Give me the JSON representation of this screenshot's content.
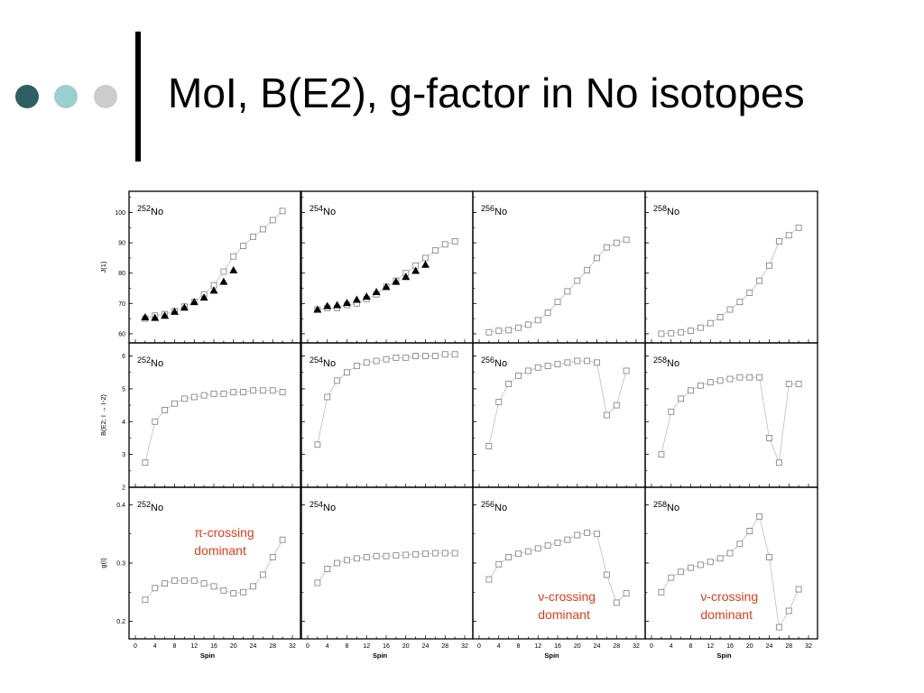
{
  "slide": {
    "title": "MoI, B(E2), g-factor in No isotopes",
    "accent_colors": [
      "#2f5f63",
      "#9ccfd0",
      "#cccccc"
    ]
  },
  "chart_data": {
    "type": "scatter",
    "xlabel": "Spin",
    "x_ticks": [
      0,
      4,
      8,
      12,
      16,
      20,
      24,
      28,
      32
    ],
    "xlim": [
      0,
      32
    ],
    "columns": [
      "252",
      "254",
      "256",
      "258"
    ],
    "nucleus_suffix": "No",
    "rows": [
      {
        "ylabel": "J(1)",
        "ylim": [
          57,
          107
        ],
        "y_ticks": [
          60,
          70,
          80,
          90,
          100
        ],
        "panels": [
          {
            "isotope": "252",
            "calc_x": [
              2,
              4,
              6,
              8,
              10,
              12,
              14,
              16,
              18,
              20,
              22,
              24,
              26,
              28,
              30
            ],
            "calc_y": [
              65,
              66,
              66.5,
              67.5,
              69,
              70.5,
              73,
              76,
              80.5,
              85.5,
              89,
              92,
              94.5,
              97.5,
              100.5
            ],
            "exp_x": [
              2,
              4,
              6,
              8,
              10,
              12,
              14,
              16,
              18,
              20
            ],
            "exp_y": [
              65.5,
              65.3,
              66,
              67.3,
              68.7,
              70.5,
              72,
              74.3,
              77.2,
              81
            ]
          },
          {
            "isotope": "254",
            "calc_x": [
              2,
              4,
              6,
              8,
              10,
              12,
              14,
              16,
              18,
              20,
              22,
              24,
              26,
              28,
              30
            ],
            "calc_y": [
              68,
              68.5,
              68.5,
              69.5,
              70,
              71.5,
              73,
              75.5,
              77.5,
              80,
              82.5,
              85,
              87.5,
              89.5,
              90.5
            ],
            "exp_x": [
              2,
              4,
              6,
              8,
              10,
              12,
              14,
              16,
              18,
              20,
              22,
              24
            ],
            "exp_y": [
              68,
              69.2,
              69.5,
              70.2,
              71.3,
              72.3,
              73.8,
              75.5,
              77.2,
              78.8,
              80.8,
              82.8
            ]
          },
          {
            "isotope": "256",
            "calc_x": [
              2,
              4,
              6,
              8,
              10,
              12,
              14,
              16,
              18,
              20,
              22,
              24,
              26,
              28,
              30
            ],
            "calc_y": [
              60.5,
              61,
              61.2,
              62,
              63,
              64.5,
              67,
              70.5,
              74,
              77.5,
              81,
              85,
              88.5,
              90,
              91
            ],
            "exp_x": [],
            "exp_y": []
          },
          {
            "isotope": "258",
            "calc_x": [
              2,
              4,
              6,
              8,
              10,
              12,
              14,
              16,
              18,
              20,
              22,
              24,
              26,
              28,
              30
            ],
            "calc_y": [
              60,
              60.2,
              60.5,
              61,
              62,
              63.5,
              65.5,
              68,
              70.5,
              73.5,
              77.5,
              82.5,
              90.5,
              92.5,
              95
            ],
            "exp_x": [],
            "exp_y": []
          }
        ]
      },
      {
        "ylabel": "B(E2; I → I-2)",
        "ylim": [
          2,
          6.4
        ],
        "y_ticks": [
          2,
          3,
          4,
          5,
          6
        ],
        "panels": [
          {
            "isotope": "252",
            "calc_x": [
              2,
              4,
              6,
              8,
              10,
              12,
              14,
              16,
              18,
              20,
              22,
              24,
              26,
              28,
              30
            ],
            "calc_y": [
              2.75,
              4.0,
              4.35,
              4.55,
              4.7,
              4.75,
              4.8,
              4.85,
              4.85,
              4.9,
              4.9,
              4.95,
              4.95,
              4.95,
              4.9
            ],
            "exp_x": [],
            "exp_y": []
          },
          {
            "isotope": "254",
            "calc_x": [
              2,
              4,
              6,
              8,
              10,
              12,
              14,
              16,
              18,
              20,
              22,
              24,
              26,
              28,
              30
            ],
            "calc_y": [
              3.3,
              4.75,
              5.25,
              5.5,
              5.7,
              5.8,
              5.85,
              5.9,
              5.95,
              5.95,
              6.0,
              6.0,
              6.0,
              6.05,
              6.05
            ],
            "exp_x": [],
            "exp_y": []
          },
          {
            "isotope": "256",
            "calc_x": [
              2,
              4,
              6,
              8,
              10,
              12,
              14,
              16,
              18,
              20,
              22,
              24,
              26,
              28,
              30
            ],
            "calc_y": [
              3.25,
              4.6,
              5.15,
              5.4,
              5.55,
              5.65,
              5.7,
              5.75,
              5.8,
              5.85,
              5.85,
              5.8,
              4.2,
              4.5,
              5.55
            ],
            "exp_x": [],
            "exp_y": []
          },
          {
            "isotope": "258",
            "calc_x": [
              2,
              4,
              6,
              8,
              10,
              12,
              14,
              16,
              18,
              20,
              22,
              24,
              26,
              28,
              30
            ],
            "calc_y": [
              3.0,
              4.3,
              4.7,
              4.95,
              5.1,
              5.2,
              5.25,
              5.3,
              5.35,
              5.35,
              5.35,
              3.5,
              2.75,
              5.15,
              5.15
            ],
            "exp_x": [],
            "exp_y": []
          }
        ]
      },
      {
        "ylabel": "g(I)",
        "ylim": [
          0.17,
          0.43
        ],
        "y_ticks": [
          0.2,
          0.3,
          0.4
        ],
        "panels": [
          {
            "isotope": "252",
            "calc_x": [
              2,
              4,
              6,
              8,
              10,
              12,
              14,
              16,
              18,
              20,
              22,
              24,
              26,
              28,
              30
            ],
            "calc_y": [
              0.237,
              0.257,
              0.265,
              0.27,
              0.27,
              0.27,
              0.265,
              0.26,
              0.253,
              0.248,
              0.25,
              0.26,
              0.28,
              0.31,
              0.34
            ],
            "exp_x": [],
            "exp_y": []
          },
          {
            "isotope": "254",
            "calc_x": [
              2,
              4,
              6,
              8,
              10,
              12,
              14,
              16,
              18,
              20,
              22,
              24,
              26,
              28,
              30
            ],
            "calc_y": [
              0.266,
              0.29,
              0.3,
              0.305,
              0.308,
              0.31,
              0.312,
              0.312,
              0.313,
              0.314,
              0.315,
              0.316,
              0.317,
              0.317,
              0.317
            ],
            "exp_x": [],
            "exp_y": []
          },
          {
            "isotope": "256",
            "calc_x": [
              2,
              4,
              6,
              8,
              10,
              12,
              14,
              16,
              18,
              20,
              22,
              24,
              26,
              28,
              30
            ],
            "calc_y": [
              0.272,
              0.298,
              0.31,
              0.316,
              0.32,
              0.325,
              0.33,
              0.335,
              0.34,
              0.348,
              0.352,
              0.35,
              0.28,
              0.232,
              0.248
            ],
            "exp_x": [],
            "exp_y": []
          },
          {
            "isotope": "258",
            "calc_x": [
              2,
              4,
              6,
              8,
              10,
              12,
              14,
              16,
              18,
              20,
              22,
              24,
              26,
              28,
              30
            ],
            "calc_y": [
              0.25,
              0.275,
              0.285,
              0.292,
              0.297,
              0.302,
              0.308,
              0.317,
              0.333,
              0.355,
              0.38,
              0.31,
              0.19,
              0.218,
              0.255
            ],
            "exp_x": [],
            "exp_y": []
          }
        ]
      }
    ],
    "annotations": [
      {
        "row": 2,
        "col": 0,
        "text_lines": [
          "π-crossing",
          "dominant"
        ],
        "at": [
          12,
          0.345
        ],
        "color": "#d9401b"
      },
      {
        "row": 2,
        "col": 2,
        "text_lines": [
          "ν-crossing",
          "dominant"
        ],
        "at": [
          12,
          0.235
        ],
        "color": "#d9401b"
      },
      {
        "row": 2,
        "col": 3,
        "text_lines": [
          "ν-crossing",
          "dominant"
        ],
        "at": [
          10,
          0.235
        ],
        "color": "#d9401b"
      }
    ]
  }
}
